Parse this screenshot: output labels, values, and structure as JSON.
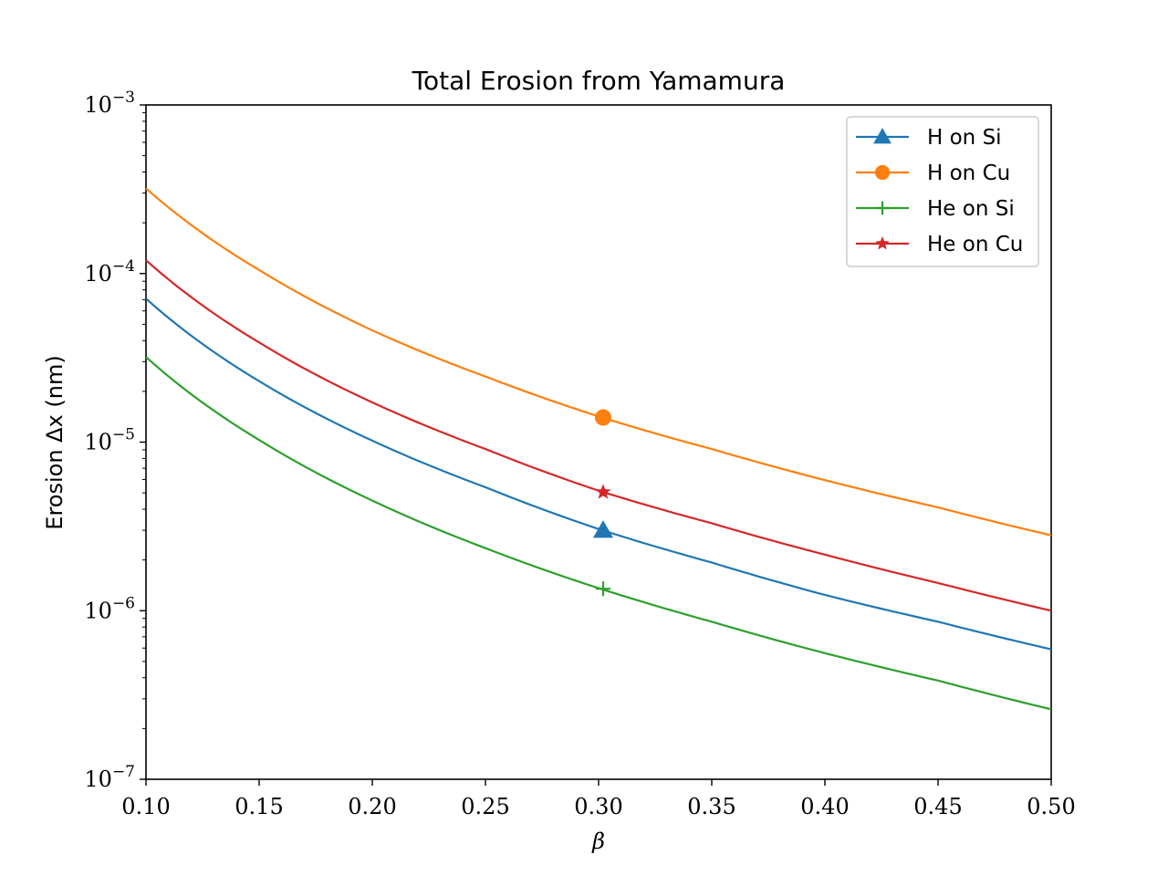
{
  "chart_data": {
    "type": "line",
    "title": "Total Erosion from Yamamura",
    "xlabel": "β",
    "ylabel": "Erosion Δx (nm)",
    "xlim": [
      0.1,
      0.5
    ],
    "ylim": [
      1e-07,
      0.001
    ],
    "yscale": "log",
    "x_ticks": [
      0.1,
      0.15,
      0.2,
      0.25,
      0.3,
      0.35,
      0.4,
      0.45,
      0.5
    ],
    "x_tick_labels": [
      "0.10",
      "0.15",
      "0.20",
      "0.25",
      "0.30",
      "0.35",
      "0.40",
      "0.45",
      "0.50"
    ],
    "y_ticks": [
      {
        "base": "10",
        "exp": "−7",
        "value": 1e-07
      },
      {
        "base": "10",
        "exp": "−6",
        "value": 1e-06
      },
      {
        "base": "10",
        "exp": "−5",
        "value": 1e-05
      },
      {
        "base": "10",
        "exp": "−4",
        "value": 0.0001
      },
      {
        "base": "10",
        "exp": "−3",
        "value": 0.001
      }
    ],
    "legend_position": "upper right",
    "series": [
      {
        "name": "H on Si",
        "color": "#1f77b4",
        "marker": "triangle",
        "x": [
          0.1,
          0.15,
          0.2,
          0.25,
          0.3,
          0.35,
          0.4,
          0.45,
          0.5
        ],
        "y": [
          7.1e-05,
          2.3e-05,
          1.02e-05,
          5.4e-06,
          3.05e-06,
          1.93e-06,
          1.24e-06,
          8.6e-07,
          5.9e-07
        ],
        "marker_x": 0.302,
        "marker_y": 3e-06
      },
      {
        "name": "H on Cu",
        "color": "#ff7f0e",
        "marker": "circle",
        "x": [
          0.1,
          0.15,
          0.2,
          0.25,
          0.3,
          0.35,
          0.4,
          0.45,
          0.5
        ],
        "y": [
          0.00032,
          0.000105,
          4.6e-05,
          2.45e-05,
          1.42e-05,
          9.1e-06,
          5.95e-06,
          4.1e-06,
          2.8e-06
        ],
        "marker_x": 0.302,
        "marker_y": 1.4e-05
      },
      {
        "name": "He on Si",
        "color": "#2ca02c",
        "marker": "plus",
        "x": [
          0.1,
          0.15,
          0.2,
          0.25,
          0.3,
          0.35,
          0.4,
          0.45,
          0.5
        ],
        "y": [
          3.2e-05,
          1.03e-05,
          4.5e-06,
          2.35e-06,
          1.36e-06,
          8.6e-07,
          5.6e-07,
          3.85e-07,
          2.6e-07
        ],
        "marker_x": 0.302,
        "marker_y": 1.35e-06
      },
      {
        "name": "He on Cu",
        "color": "#d62728",
        "marker": "star",
        "x": [
          0.1,
          0.15,
          0.2,
          0.25,
          0.3,
          0.35,
          0.4,
          0.45,
          0.5
        ],
        "y": [
          0.00012,
          3.9e-05,
          1.72e-05,
          9.1e-06,
          5.15e-06,
          3.3e-06,
          2.15e-06,
          1.46e-06,
          1e-06
        ],
        "marker_x": 0.302,
        "marker_y": 5.05e-06
      }
    ]
  }
}
